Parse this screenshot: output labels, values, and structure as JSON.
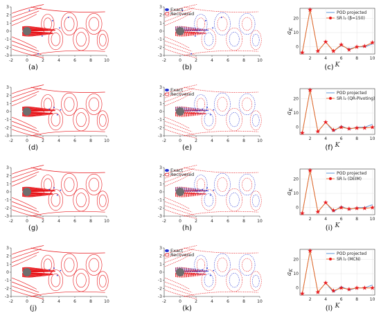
{
  "figure": {
    "captions": [
      "(a)",
      "(b)",
      "(c)",
      "(d)",
      "(e)",
      "(f)",
      "(g)",
      "(h)",
      "(i)",
      "(j)",
      "(k)",
      "(l)"
    ],
    "flow_axes": {
      "x_ticks": [
        "-2",
        "0",
        "2",
        "4",
        "6",
        "8",
        "10"
      ],
      "y_ticks": [
        "3",
        "2",
        "1",
        "0",
        "-1",
        "-2",
        "-3"
      ],
      "xlim": [
        -2,
        10
      ],
      "ylim": [
        -3,
        3
      ]
    },
    "flow_colors": {
      "exact": "#1f2fd0",
      "recovered": "#e8161b",
      "cylinder": "#6e6e6e"
    },
    "comparison_legend": {
      "exact": "Exact",
      "recovered": "Recovered"
    },
    "coefficient_plots": {
      "xlabel": "K",
      "ylabel": "a_K",
      "projected_label": "POD projected",
      "projected_color": "#4d8fd6",
      "sr_color": "#ee6a22",
      "marker_color": "#e8161b",
      "rows": [
        {
          "sr_label": "SR l₂ (β=150)"
        },
        {
          "sr_label": "SR l₂ (QR-Pivoting)"
        },
        {
          "sr_label": "SR l₂ (DEIM)"
        },
        {
          "sr_label": "SR l₂ (MCN)"
        }
      ]
    }
  },
  "chart_data": {
    "type": "line",
    "xlabel": "K",
    "ylabel": "a_K",
    "x": [
      1,
      2,
      3,
      4,
      5,
      6,
      7,
      8,
      9,
      10
    ],
    "ylim": [
      -5,
      27
    ],
    "yticks": [
      0,
      10,
      20
    ],
    "grid": true,
    "legend_position": "top-right",
    "series": [
      {
        "name": "POD projected",
        "values": [
          -4,
          26,
          -3,
          3.5,
          -3,
          1,
          -1.5,
          0,
          0,
          2
        ]
      },
      {
        "name": "SR l₂ (β=150)",
        "values": [
          -4,
          26,
          -3,
          3.5,
          -3,
          1.5,
          -2,
          0,
          0.5,
          3
        ]
      },
      {
        "name": "SR l₂ (QR-Pivoting)",
        "values": [
          -4,
          26,
          -3,
          3.5,
          -2,
          0,
          -1,
          -0.5,
          -0.5,
          0
        ]
      },
      {
        "name": "SR l₂ (DEIM)",
        "values": [
          -4,
          26,
          -3,
          3.5,
          -2,
          0,
          -1,
          -0.5,
          -0.5,
          0
        ]
      },
      {
        "name": "SR l₂ (MCN)",
        "values": [
          -4,
          26,
          -3,
          3.5,
          -2,
          0,
          -1,
          0,
          0,
          0
        ]
      }
    ]
  }
}
